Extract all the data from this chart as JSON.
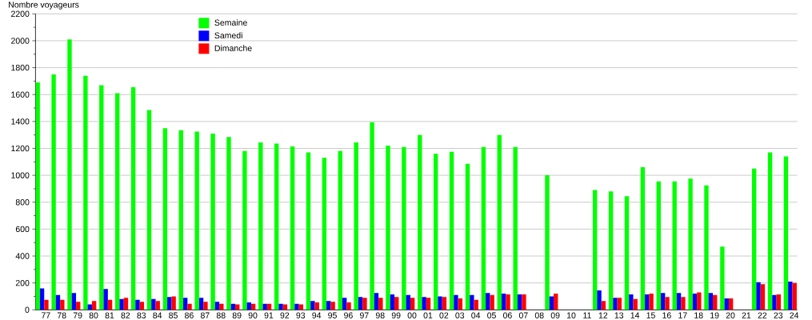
{
  "chart_data": {
    "type": "bar",
    "ylabel": "Nombre voyageurs",
    "categories": [
      "77",
      "78",
      "79",
      "80",
      "81",
      "82",
      "83",
      "84",
      "85",
      "86",
      "87",
      "88",
      "89",
      "90",
      "91",
      "92",
      "93",
      "94",
      "95",
      "96",
      "97",
      "98",
      "99",
      "00",
      "01",
      "02",
      "03",
      "04",
      "05",
      "06",
      "07",
      "08",
      "09",
      "10",
      "11",
      "12",
      "13",
      "14",
      "15",
      "16",
      "17",
      "18",
      "19",
      "20",
      "21",
      "22",
      "23",
      "24"
    ],
    "series": [
      {
        "name": "Semaine",
        "color": "#00ff00",
        "values": [
          1690,
          1750,
          2010,
          1740,
          1670,
          1610,
          1655,
          1485,
          1350,
          1335,
          1325,
          1310,
          1285,
          1180,
          1245,
          1235,
          1215,
          1170,
          1130,
          1180,
          1245,
          1395,
          1220,
          1210,
          1300,
          1160,
          1175,
          1085,
          1210,
          1300,
          1210,
          null,
          1000,
          null,
          null,
          890,
          880,
          845,
          1060,
          955,
          955,
          975,
          925,
          470,
          null,
          1050,
          1170,
          1140
        ]
      },
      {
        "name": "Samedi",
        "color": "#0000ff",
        "values": [
          160,
          110,
          125,
          40,
          155,
          80,
          75,
          80,
          95,
          90,
          90,
          60,
          45,
          55,
          45,
          45,
          45,
          65,
          65,
          90,
          95,
          125,
          115,
          110,
          95,
          100,
          110,
          110,
          125,
          120,
          115,
          null,
          100,
          null,
          null,
          145,
          90,
          115,
          115,
          125,
          125,
          120,
          125,
          85,
          null,
          205,
          110,
          210
        ]
      },
      {
        "name": "Dimanche",
        "color": "#ff0000",
        "values": [
          75,
          75,
          60,
          65,
          75,
          90,
          60,
          65,
          100,
          45,
          60,
          45,
          40,
          45,
          45,
          40,
          40,
          55,
          60,
          55,
          90,
          90,
          95,
          90,
          90,
          95,
          85,
          75,
          110,
          115,
          115,
          null,
          120,
          null,
          null,
          65,
          90,
          80,
          120,
          95,
          95,
          130,
          110,
          85,
          null,
          190,
          115,
          200
        ]
      }
    ],
    "ylim": [
      0,
      2200
    ],
    "yticks": [
      0,
      {
        "value": 100,
        "label": null
      },
      200,
      {
        "value": 300,
        "label": null
      },
      400,
      {
        "value": 500,
        "label": null
      },
      600,
      {
        "value": 700,
        "label": null
      },
      800,
      {
        "value": 900,
        "label": null
      },
      1000,
      {
        "value": 1100,
        "label": null
      },
      1200,
      {
        "value": 1300,
        "label": null
      },
      1400,
      {
        "value": 1500,
        "label": null
      },
      1600,
      {
        "value": 1700,
        "label": null
      },
      1800,
      {
        "value": 1900,
        "label": null
      },
      2000,
      {
        "value": 2100,
        "label": null
      },
      2200
    ],
    "grid": "y",
    "legend": "top left"
  }
}
